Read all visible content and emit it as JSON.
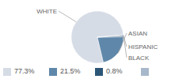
{
  "chart_data": {
    "type": "pie",
    "categories": [
      "WHITE",
      "ASIAN",
      "HISPANIC",
      "BLACK"
    ],
    "values": [
      77.3,
      21.5,
      0.8,
      0.4
    ],
    "value_labels": [
      "77.3%",
      "21.5%",
      "0.8%",
      null
    ],
    "colors": [
      "#d6dce6",
      "#5f87a9",
      "#2d5676",
      "#a8b8cb"
    ],
    "legend": "bottom"
  }
}
